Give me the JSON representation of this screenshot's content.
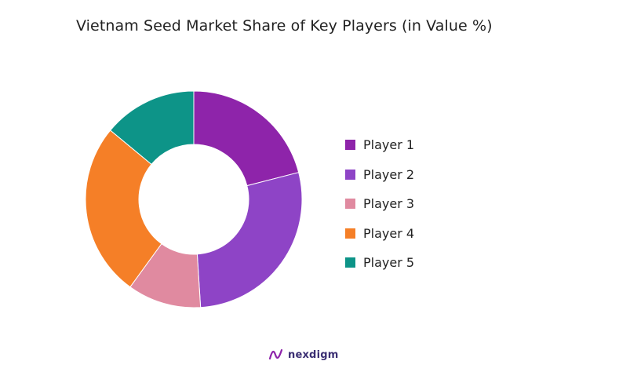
{
  "chart_data": {
    "type": "pie",
    "title": "Vietnam Seed Market Share of Key Players (in Value %)",
    "donut": true,
    "categories": [
      "Player 1",
      "Player 2",
      "Player 3",
      "Player 4",
      "Player 5"
    ],
    "values": [
      21,
      28,
      11,
      26,
      14
    ],
    "colors": [
      "#8e24aa",
      "#8e44c6",
      "#e08aa0",
      "#f57f27",
      "#0d9488"
    ],
    "legend_position": "right"
  },
  "brand": {
    "name": "nexdigm",
    "logo_color": "#8e24aa"
  }
}
